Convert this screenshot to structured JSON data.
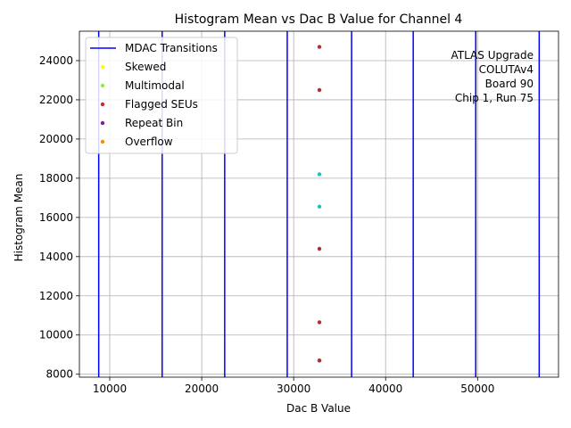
{
  "chart_data": {
    "type": "scatter",
    "title": "Histogram Mean vs Dac B Value for Channel 4",
    "xlabel": "Dac B Value",
    "ylabel": "Histogram Mean",
    "xlim": [
      6700,
      58800
    ],
    "ylim": [
      7850,
      25500
    ],
    "xticks": [
      10000,
      20000,
      30000,
      40000,
      50000
    ],
    "yticks": [
      8000,
      10000,
      12000,
      14000,
      16000,
      18000,
      20000,
      22000,
      24000
    ],
    "xtick_labels": [
      "10000",
      "20000",
      "30000",
      "40000",
      "50000"
    ],
    "ytick_labels": [
      "8000",
      "10000",
      "12000",
      "14000",
      "16000",
      "18000",
      "20000",
      "22000",
      "24000"
    ],
    "grid": true,
    "mdac_transitions": {
      "name": "MDAC Transitions",
      "color": "#0000ff",
      "x": [
        8800,
        15700,
        22500,
        29300,
        36300,
        43000,
        49800,
        56700
      ]
    },
    "series": [
      {
        "name": "",
        "color": "#b03030",
        "x": [
          32800,
          32800,
          32800,
          32800,
          32800,
          32800
        ],
        "y": [
          24700,
          22500,
          14400,
          10650,
          8700,
          8700
        ]
      },
      {
        "name": "",
        "color": "#20c0c0",
        "x": [
          32800,
          32800
        ],
        "y": [
          18200,
          16550
        ]
      }
    ],
    "legend": {
      "position": "top-left",
      "entries": [
        {
          "label": "MDAC Transitions",
          "kind": "line",
          "color": "#0000ff"
        },
        {
          "label": "Skewed",
          "kind": "dot",
          "color": "#ffff00"
        },
        {
          "label": "Multimodal",
          "kind": "dot",
          "color": "#90ee30"
        },
        {
          "label": "Flagged SEUs",
          "kind": "dot",
          "color": "#d62728"
        },
        {
          "label": "Repeat Bin",
          "kind": "dot",
          "color": "#7b1fa2"
        },
        {
          "label": "Overflow",
          "kind": "dot",
          "color": "#ff8c00"
        }
      ]
    },
    "annotation": {
      "position": "top-right",
      "lines": [
        "ATLAS Upgrade",
        "COLUTAv4",
        "Board 90",
        "Chip 1, Run 75"
      ]
    }
  }
}
